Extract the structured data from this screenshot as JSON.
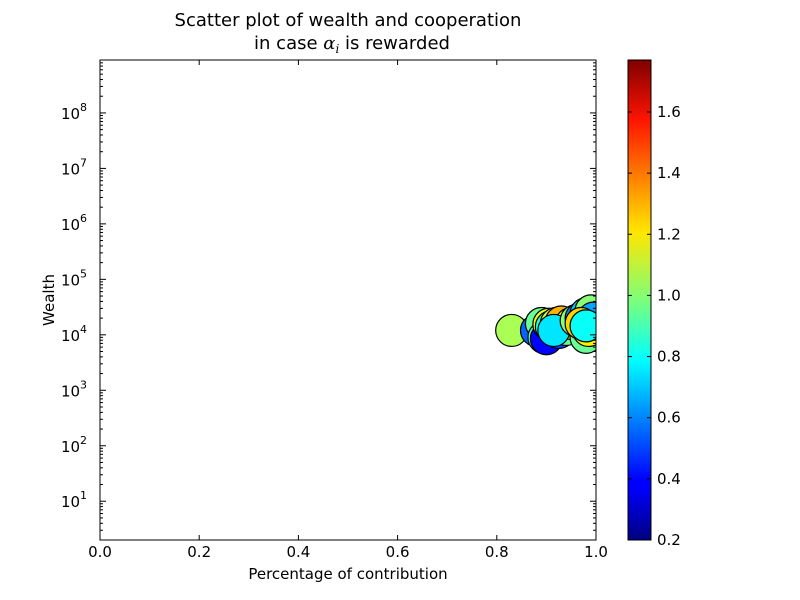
{
  "chart_data": {
    "type": "scatter",
    "title": "Scatter plot of wealth and cooperation",
    "subtitle_prefix": "in case ",
    "subtitle_symbol": "α",
    "subtitle_subscript": "i",
    "subtitle_suffix": " is rewarded",
    "xlabel": "Percentage of contribution",
    "ylabel": "Wealth",
    "x_scale": "linear",
    "y_scale": "log",
    "xlim": [
      0.0,
      1.0
    ],
    "ylim": [
      2,
      900000000
    ],
    "grid": false,
    "x_ticks": [
      "0.0",
      "0.2",
      "0.4",
      "0.6",
      "0.8",
      "1.0"
    ],
    "y_ticks": [
      {
        "base": "10",
        "exp": "1"
      },
      {
        "base": "10",
        "exp": "2"
      },
      {
        "base": "10",
        "exp": "3"
      },
      {
        "base": "10",
        "exp": "4"
      },
      {
        "base": "10",
        "exp": "5"
      },
      {
        "base": "10",
        "exp": "6"
      },
      {
        "base": "10",
        "exp": "7"
      },
      {
        "base": "10",
        "exp": "8"
      }
    ],
    "colorbar": {
      "colormap": "jet",
      "range": [
        0.2,
        1.77
      ],
      "ticks": [
        "0.2",
        "0.4",
        "0.6",
        "0.8",
        "1.0",
        "1.2",
        "1.4",
        "1.6"
      ]
    },
    "points": [
      {
        "x": 0.83,
        "y": 12000,
        "c": 1.05
      },
      {
        "x": 0.88,
        "y": 12000,
        "c": 0.55
      },
      {
        "x": 0.89,
        "y": 16000,
        "c": 0.95
      },
      {
        "x": 0.895,
        "y": 9000,
        "c": 0.9
      },
      {
        "x": 0.9,
        "y": 8500,
        "c": 0.4
      },
      {
        "x": 0.905,
        "y": 15500,
        "c": 1.15
      },
      {
        "x": 0.91,
        "y": 14000,
        "c": 0.85
      },
      {
        "x": 0.92,
        "y": 16000,
        "c": 1.1
      },
      {
        "x": 0.925,
        "y": 11000,
        "c": 0.5
      },
      {
        "x": 0.93,
        "y": 17000,
        "c": 1.3
      },
      {
        "x": 0.94,
        "y": 12500,
        "c": 0.95
      },
      {
        "x": 0.95,
        "y": 16000,
        "c": 1.2
      },
      {
        "x": 0.915,
        "y": 12000,
        "c": 0.75
      },
      {
        "x": 0.96,
        "y": 18000,
        "c": 1.0
      },
      {
        "x": 0.97,
        "y": 20000,
        "c": 0.6
      },
      {
        "x": 0.975,
        "y": 15000,
        "c": 1.15
      },
      {
        "x": 0.98,
        "y": 9000,
        "c": 0.95
      },
      {
        "x": 0.98,
        "y": 24000,
        "c": 0.7
      },
      {
        "x": 0.985,
        "y": 12000,
        "c": 1.2
      },
      {
        "x": 0.99,
        "y": 17000,
        "c": 0.9
      },
      {
        "x": 0.99,
        "y": 27000,
        "c": 1.0
      },
      {
        "x": 0.995,
        "y": 20000,
        "c": 0.65
      },
      {
        "x": 0.97,
        "y": 16000,
        "c": 1.25
      },
      {
        "x": 0.98,
        "y": 14500,
        "c": 0.8
      }
    ]
  }
}
